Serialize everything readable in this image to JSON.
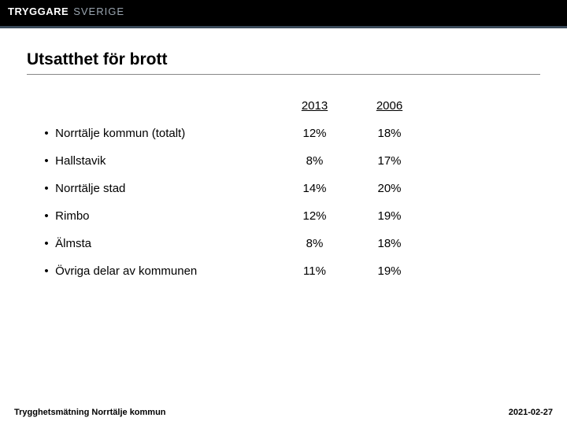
{
  "header": {
    "logo_part1": "TRYGGARE",
    "logo_part2": "SVERIGE"
  },
  "title": "Utsatthet för brott",
  "table": {
    "columns": [
      "2013",
      "2006"
    ],
    "rows": [
      {
        "label": "Norrtälje kommun (totalt)",
        "v1": "12%",
        "v2": "18%"
      },
      {
        "label": "Hallstavik",
        "v1": "8%",
        "v2": "17%"
      },
      {
        "label": "Norrtälje stad",
        "v1": "14%",
        "v2": "20%"
      },
      {
        "label": "Rimbo",
        "v1": "12%",
        "v2": "19%"
      },
      {
        "label": "Älmsta",
        "v1": "8%",
        "v2": "18%"
      },
      {
        "label": "Övriga delar av kommunen",
        "v1": "11%",
        "v2": "19%"
      }
    ]
  },
  "footer": {
    "left": "Trygghetsmätning Norrtälje kommun",
    "right": "2021-02-27"
  },
  "colors": {
    "header_bg": "#000000",
    "header_border": "#3a4a5a",
    "logo_primary": "#ffffff",
    "logo_secondary": "#9aa5b0",
    "text": "#000000",
    "title_underline": "#888888",
    "page_bg": "#ffffff"
  }
}
